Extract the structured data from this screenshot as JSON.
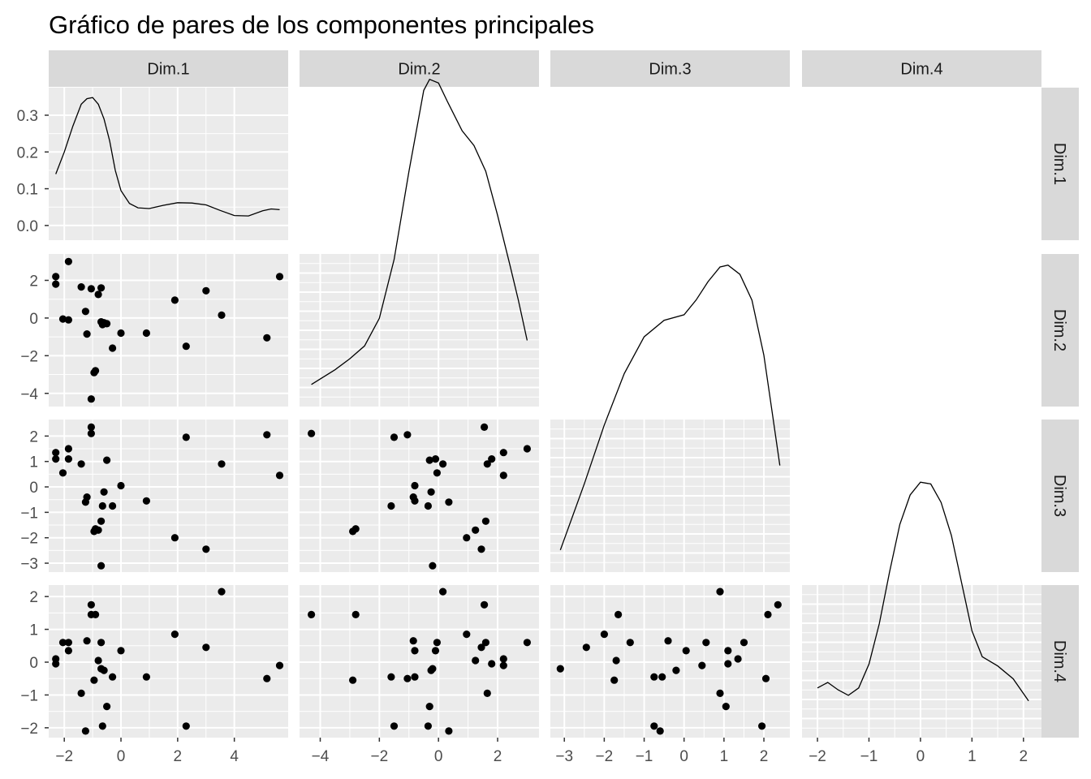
{
  "chart_data": {
    "type": "scatter",
    "title": "Gráfico de pares de los componentes principales",
    "variables": [
      "Dim.1",
      "Dim.2",
      "Dim.3",
      "Dim.4"
    ],
    "axis_ticks": {
      "Dim.1": [
        -2,
        0,
        2,
        4
      ],
      "Dim.2": [
        -4,
        -2,
        0,
        2
      ],
      "Dim.3": [
        -3,
        -2,
        -1,
        0,
        1,
        2
      ],
      "Dim.4": [
        -2,
        -1,
        0,
        1,
        2
      ]
    },
    "axis_ranges": {
      "Dim.1": [
        -2.55,
        5.9
      ],
      "Dim.2": [
        -4.7,
        3.4
      ],
      "Dim.3": [
        -3.35,
        2.65
      ],
      "Dim.4": [
        -2.3,
        2.35
      ]
    },
    "density_ylim": [
      -0.04,
      0.375
    ],
    "density_yticks": [
      "0.0",
      "0.1",
      "0.2",
      "0.3"
    ],
    "grid": true,
    "observations": [
      {
        "d1": -2.3,
        "d2": 2.2,
        "d3": 1.35,
        "d4": 0.1
      },
      {
        "d1": -2.3,
        "d2": 1.8,
        "d3": 1.1,
        "d4": -0.05
      },
      {
        "d1": -2.05,
        "d2": -0.05,
        "d3": 0.55,
        "d4": 0.6
      },
      {
        "d1": -1.85,
        "d2": 3.0,
        "d3": 1.5,
        "d4": 0.6
      },
      {
        "d1": -1.85,
        "d2": -0.1,
        "d3": 1.1,
        "d4": 0.35
      },
      {
        "d1": -1.4,
        "d2": 1.65,
        "d3": 0.9,
        "d4": -0.95
      },
      {
        "d1": -1.25,
        "d2": 0.35,
        "d3": -0.6,
        "d4": -2.1
      },
      {
        "d1": -1.2,
        "d2": -0.85,
        "d3": -0.4,
        "d4": 0.65
      },
      {
        "d1": -1.05,
        "d2": 1.55,
        "d3": 2.35,
        "d4": 1.75
      },
      {
        "d1": -1.05,
        "d2": -4.3,
        "d3": 2.1,
        "d4": 1.45
      },
      {
        "d1": -0.95,
        "d2": -2.9,
        "d3": -1.75,
        "d4": -0.55
      },
      {
        "d1": -0.9,
        "d2": -2.8,
        "d3": -1.65,
        "d4": 1.45
      },
      {
        "d1": -0.8,
        "d2": 1.25,
        "d3": -1.7,
        "d4": 0.05
      },
      {
        "d1": -0.7,
        "d2": 1.6,
        "d3": -1.35,
        "d4": 0.6
      },
      {
        "d1": -0.7,
        "d2": -0.2,
        "d3": -3.1,
        "d4": -0.2
      },
      {
        "d1": -0.65,
        "d2": -0.35,
        "d3": -0.75,
        "d4": -1.95
      },
      {
        "d1": -0.6,
        "d2": -0.25,
        "d3": -0.2,
        "d4": -0.25
      },
      {
        "d1": -0.5,
        "d2": -0.3,
        "d3": 1.05,
        "d4": -1.35
      },
      {
        "d1": -0.3,
        "d2": -1.6,
        "d3": -0.75,
        "d4": -0.45
      },
      {
        "d1": 0.0,
        "d2": -0.8,
        "d3": 0.05,
        "d4": 0.35
      },
      {
        "d1": 0.9,
        "d2": -0.8,
        "d3": -0.55,
        "d4": -0.45
      },
      {
        "d1": 1.9,
        "d2": 0.95,
        "d3": -2.0,
        "d4": 0.85
      },
      {
        "d1": 2.3,
        "d2": -1.5,
        "d3": 1.95,
        "d4": -1.95
      },
      {
        "d1": 3.0,
        "d2": 1.45,
        "d3": -2.45,
        "d4": 0.45
      },
      {
        "d1": 3.55,
        "d2": 0.15,
        "d3": 0.9,
        "d4": 2.15
      },
      {
        "d1": 5.15,
        "d2": -1.05,
        "d3": 2.05,
        "d4": -0.5
      },
      {
        "d1": 5.6,
        "d2": 2.2,
        "d3": 0.45,
        "d4": -0.1
      }
    ],
    "density_curves": {
      "Dim.1": {
        "x": [
          -2.3,
          -2.0,
          -1.7,
          -1.4,
          -1.2,
          -1.0,
          -0.8,
          -0.6,
          -0.4,
          -0.2,
          0.0,
          0.3,
          0.6,
          1.0,
          1.5,
          2.0,
          2.5,
          3.0,
          3.5,
          4.0,
          4.5,
          5.0,
          5.3,
          5.6
        ],
        "y": [
          0.14,
          0.2,
          0.27,
          0.33,
          0.345,
          0.348,
          0.33,
          0.29,
          0.23,
          0.15,
          0.095,
          0.06,
          0.048,
          0.046,
          0.055,
          0.062,
          0.061,
          0.056,
          0.041,
          0.027,
          0.026,
          0.04,
          0.045,
          0.043
        ]
      },
      "Dim.2": {
        "x": [
          -4.3,
          -3.5,
          -3.0,
          -2.5,
          -2.0,
          -1.5,
          -1.0,
          -0.5,
          -0.3,
          0.0,
          0.3,
          0.8,
          1.2,
          1.6,
          2.0,
          2.4,
          2.7,
          3.0
        ],
        "y": [
          0.02,
          0.06,
          0.09,
          0.125,
          0.2,
          0.36,
          0.6,
          0.82,
          0.85,
          0.84,
          0.79,
          0.71,
          0.67,
          0.6,
          0.48,
          0.35,
          0.25,
          0.14
        ]
      },
      "Dim.3": {
        "x": [
          -3.1,
          -2.5,
          -2.0,
          -1.5,
          -1.0,
          -0.5,
          0.0,
          0.3,
          0.6,
          0.9,
          1.1,
          1.4,
          1.7,
          2.0,
          2.2,
          2.4
        ],
        "y": [
          0.02,
          0.2,
          0.36,
          0.5,
          0.6,
          0.645,
          0.66,
          0.7,
          0.75,
          0.79,
          0.795,
          0.77,
          0.7,
          0.55,
          0.4,
          0.25
        ]
      },
      "Dim.4": {
        "x": [
          -2.0,
          -1.8,
          -1.6,
          -1.4,
          -1.2,
          -1.0,
          -0.8,
          -0.6,
          -0.4,
          -0.2,
          0.0,
          0.2,
          0.4,
          0.6,
          0.8,
          1.0,
          1.2,
          1.5,
          1.8,
          2.1
        ],
        "y": [
          0.095,
          0.11,
          0.09,
          0.075,
          0.095,
          0.16,
          0.27,
          0.41,
          0.54,
          0.62,
          0.655,
          0.65,
          0.6,
          0.51,
          0.38,
          0.25,
          0.18,
          0.155,
          0.12,
          0.06
        ]
      }
    }
  }
}
